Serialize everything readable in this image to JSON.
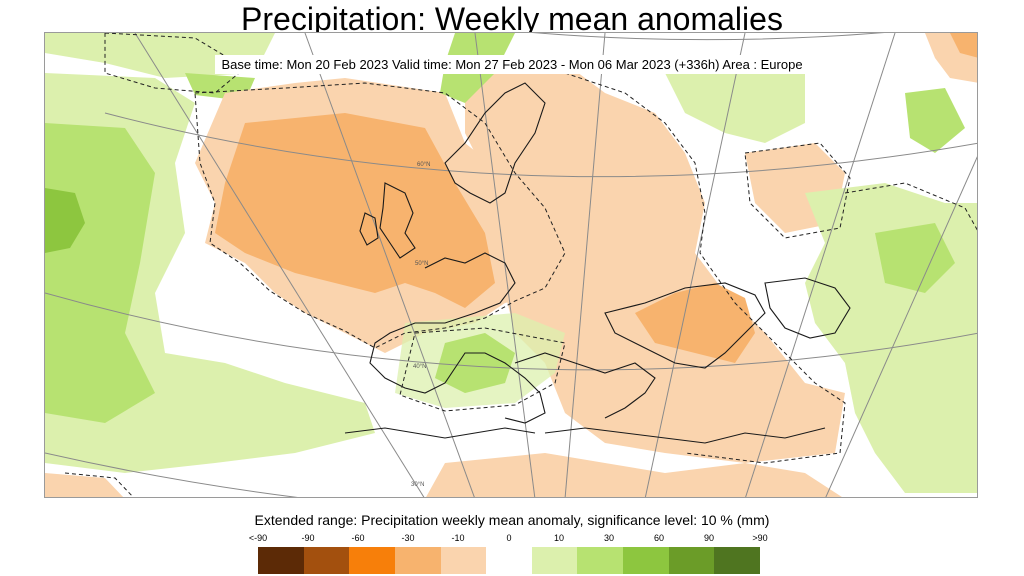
{
  "title": "Precipitation: Weekly mean anomalies",
  "subtitle": "Base time: Mon 20 Feb 2023 Valid time: Mon 27 Feb 2023 - Mon 06 Mar 2023 (+336h) Area : Europe",
  "legend": {
    "title": "Extended range: Precipitation weekly mean anomaly, significance level: 10 % (mm)",
    "labels": [
      "<-90",
      "-90",
      "-60",
      "-30",
      "-10",
      "0",
      "10",
      "30",
      "60",
      "90",
      ">90"
    ],
    "colors": [
      "#5c2a06",
      "#a3500e",
      "#f77f0a",
      "#f7b36e",
      "#fad4ae",
      "#ffffff",
      "#dcf0ad",
      "#b7e271",
      "#8dc63f",
      "#6b9c28",
      "#4f7520"
    ]
  },
  "map": {
    "area": "Europe",
    "graticule_labels": [
      "60°N",
      "50°N",
      "40°N",
      "30°N"
    ],
    "colors": {
      "dry_moderate": "#f7b36e",
      "dry_light": "#fad4ae",
      "wet_light": "#dcf0ad",
      "wet_moderate": "#b7e271",
      "wet_strong": "#8dc63f",
      "coastline": "#1a1a1a",
      "graticule": "#8a8a8a"
    }
  }
}
